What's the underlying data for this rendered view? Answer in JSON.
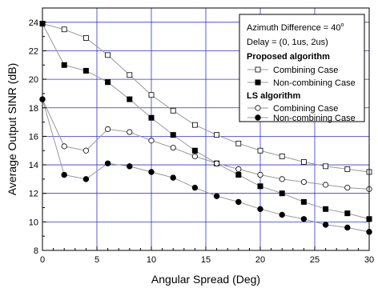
{
  "chart_data": {
    "type": "line",
    "title": "",
    "xlabel": "Angular Spread (Deg)",
    "ylabel": "Average Output SINR (dB)",
    "xlim": [
      0,
      30
    ],
    "ylim": [
      8,
      25
    ],
    "x_ticks": [
      0,
      5,
      10,
      15,
      20,
      25,
      30
    ],
    "y_ticks": [
      8,
      10,
      12,
      14,
      16,
      18,
      20,
      22,
      24
    ],
    "grid": true,
    "legend_position": "top-right",
    "legend_header": {
      "line1_prefix": "Azimuth Difference = 40",
      "line1_degree": "o",
      "line2": "Delay = (0, 1us, 2us)"
    },
    "groups": [
      {
        "title": "Proposed algorithm",
        "series_indices": [
          0,
          1
        ]
      },
      {
        "title": "LS algorithm",
        "series_indices": [
          2,
          3
        ]
      }
    ],
    "series": [
      {
        "name": "Combining Case",
        "marker": "square-open",
        "x": [
          0,
          2,
          4,
          6,
          8,
          10,
          12,
          14,
          16,
          18,
          20,
          22,
          24,
          26,
          28,
          30
        ],
        "y": [
          23.9,
          23.5,
          22.9,
          21.7,
          20.3,
          18.9,
          17.8,
          16.8,
          16.1,
          15.5,
          15.0,
          14.6,
          14.2,
          13.9,
          13.7,
          13.5
        ]
      },
      {
        "name": "Non-combining Case",
        "marker": "square-filled",
        "x": [
          0,
          2,
          4,
          6,
          8,
          10,
          12,
          14,
          16,
          18,
          20,
          22,
          24,
          26,
          28,
          30
        ],
        "y": [
          23.9,
          21.0,
          20.6,
          19.8,
          18.6,
          17.3,
          16.1,
          15.0,
          14.1,
          13.3,
          12.5,
          12.0,
          11.4,
          10.9,
          10.6,
          10.2
        ]
      },
      {
        "name": "Combining Case",
        "marker": "circle-open",
        "x": [
          0,
          2,
          4,
          6,
          8,
          10,
          12,
          14,
          16,
          18,
          20,
          22,
          24,
          26,
          28,
          30
        ],
        "y": [
          18.6,
          15.3,
          15.0,
          16.5,
          16.3,
          15.7,
          15.2,
          14.6,
          14.1,
          13.7,
          13.3,
          13.0,
          12.8,
          12.6,
          12.4,
          12.3
        ]
      },
      {
        "name": "Non-combining Case",
        "marker": "circle-filled",
        "x": [
          0,
          2,
          4,
          6,
          8,
          10,
          12,
          14,
          16,
          18,
          20,
          22,
          24,
          26,
          28,
          30
        ],
        "y": [
          18.6,
          13.3,
          13.0,
          14.1,
          13.9,
          13.5,
          13.1,
          12.4,
          11.8,
          11.4,
          10.9,
          10.5,
          10.2,
          9.8,
          9.6,
          9.3
        ]
      }
    ],
    "colors": {
      "grid": "#3333cc",
      "line": "#999999",
      "marker": "#000000",
      "frame": "#000000"
    }
  }
}
